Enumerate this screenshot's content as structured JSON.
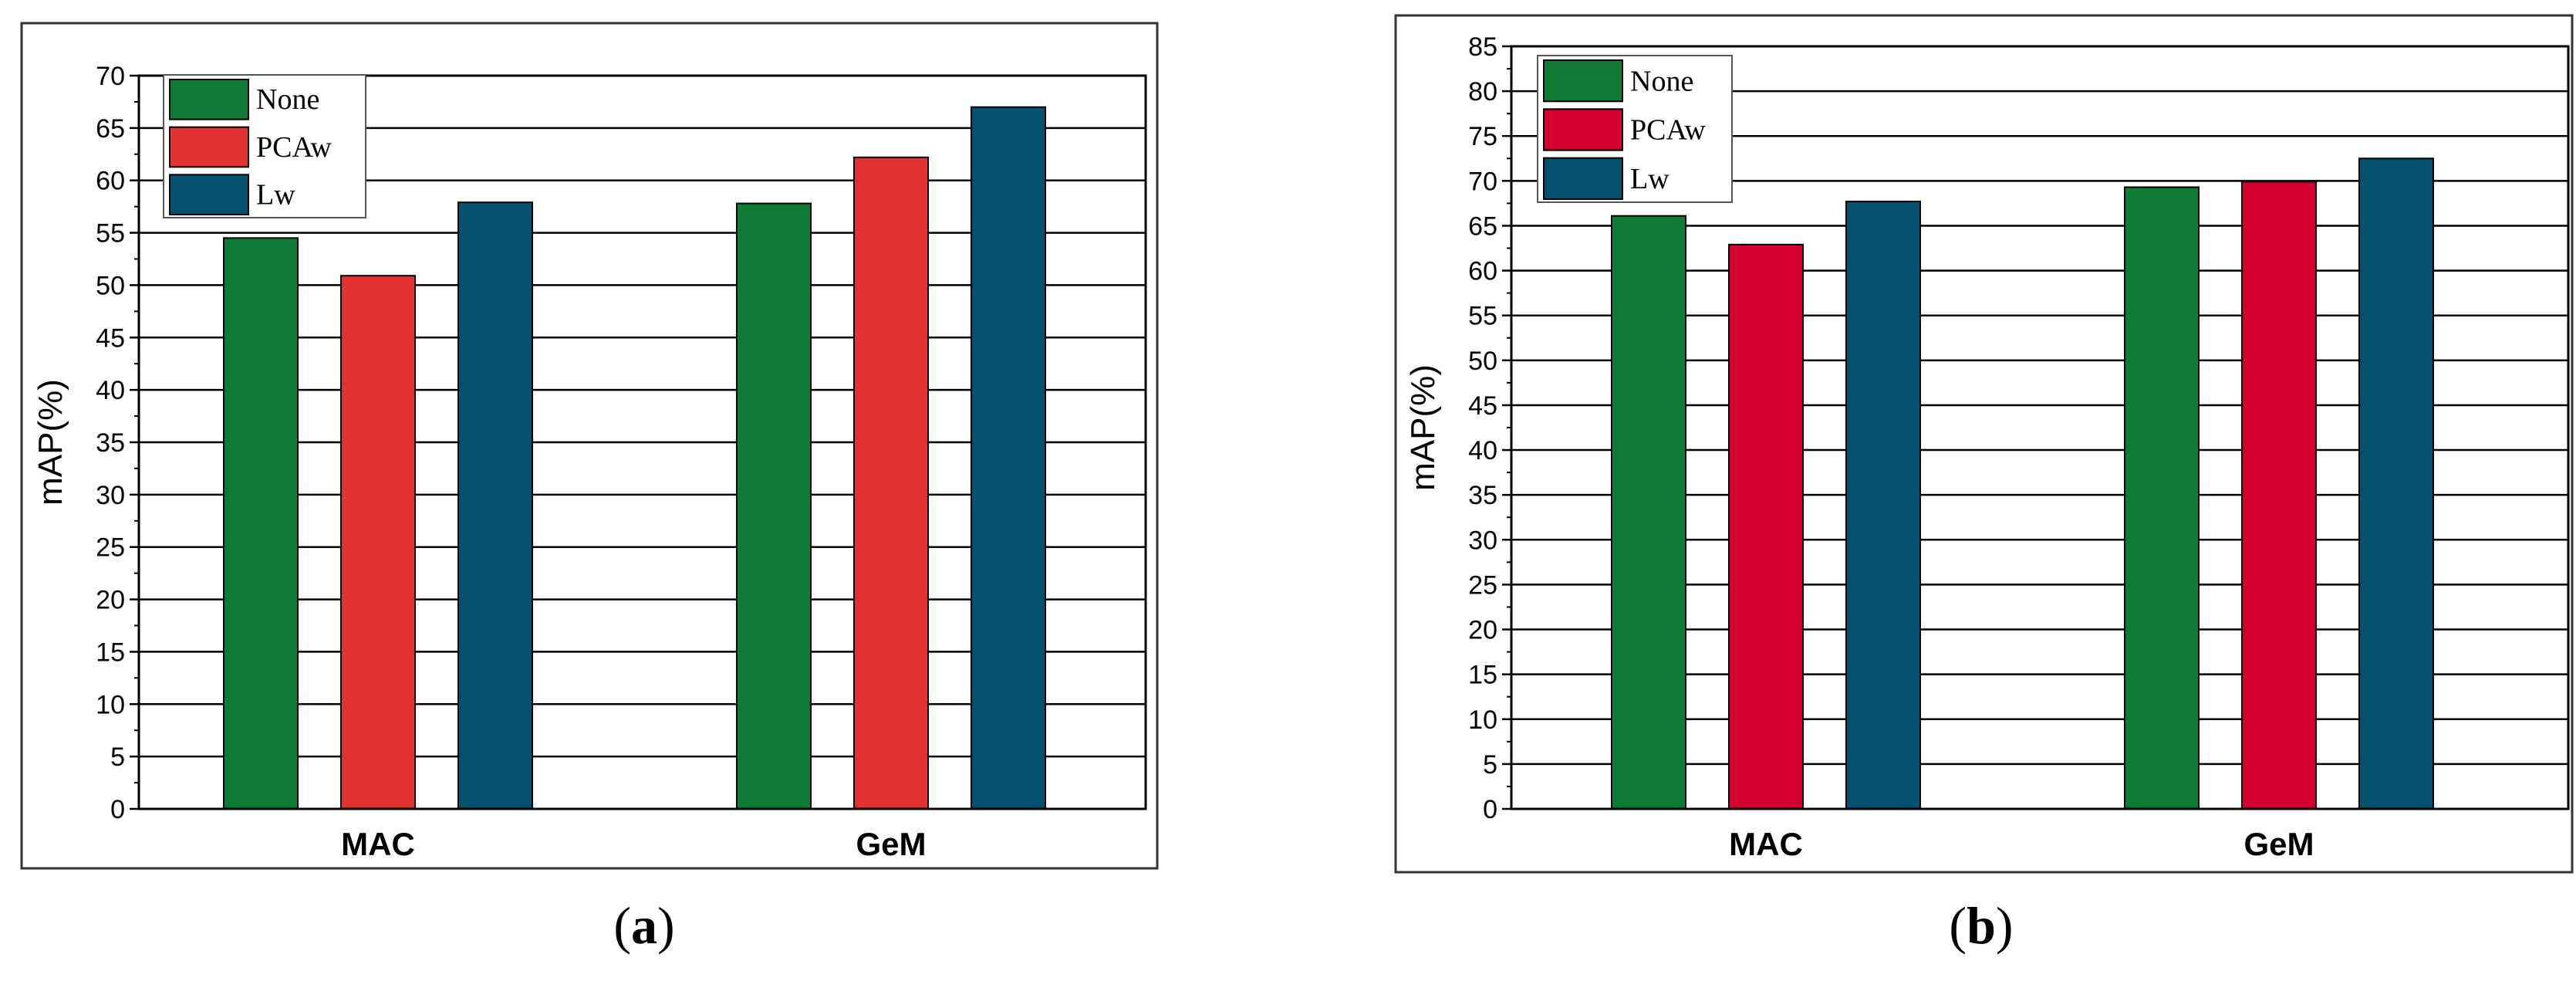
{
  "captions": [
    "(a)",
    "(b)"
  ],
  "colors": {
    "none": "#0f7a36",
    "lw": "#03506f",
    "pcaw_a": "#e23232",
    "pcaw_b": "#d3002f"
  },
  "chart_data": [
    {
      "type": "bar",
      "categories": [
        "MAC",
        "GeM"
      ],
      "ylabel": "mAP(%)",
      "xlabel": "",
      "ylim": [
        0,
        70
      ],
      "ytick_step": 5,
      "grid": true,
      "legend": "top-left",
      "series": [
        {
          "name": "None",
          "values": [
            54.5,
            57.8
          ],
          "color": "#0f7a36"
        },
        {
          "name": "PCAw",
          "values": [
            50.9,
            62.2
          ],
          "color": "#e23232"
        },
        {
          "name": "Lw",
          "values": [
            57.9,
            67.0
          ],
          "color": "#03506f"
        }
      ]
    },
    {
      "type": "bar",
      "categories": [
        "MAC",
        "GeM"
      ],
      "ylabel": "mAP(%)",
      "xlabel": "",
      "ylim": [
        0,
        85
      ],
      "ytick_step": 5,
      "grid": true,
      "legend": "top-left",
      "series": [
        {
          "name": "None",
          "values": [
            66.1,
            69.3
          ],
          "color": "#0f7a36"
        },
        {
          "name": "PCAw",
          "values": [
            62.9,
            69.9
          ],
          "color": "#d3002f"
        },
        {
          "name": "Lw",
          "values": [
            67.7,
            72.5
          ],
          "color": "#03506f"
        }
      ]
    }
  ]
}
